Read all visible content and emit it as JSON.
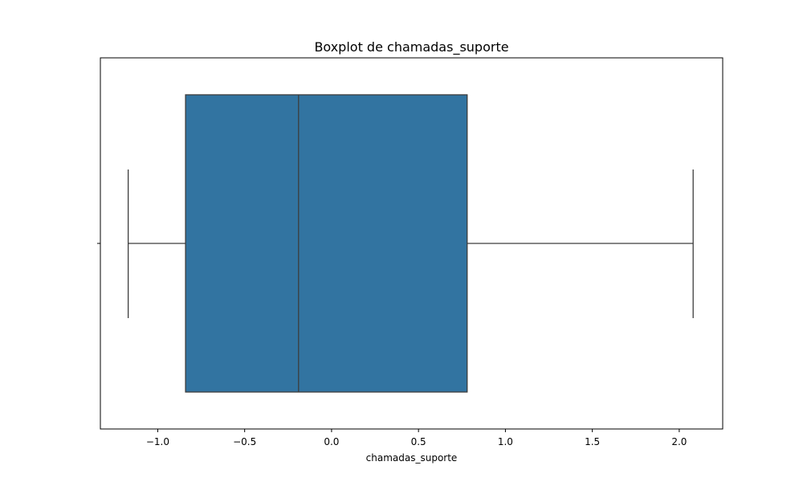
{
  "chart_data": {
    "type": "boxplot",
    "title": "Boxplot de chamadas_suporte",
    "xlabel": "chamadas_suporte",
    "ylabel": "",
    "orientation": "horizontal",
    "xlim": [
      -1.33,
      2.25
    ],
    "x_ticks": [
      -1.0,
      -0.5,
      0.0,
      0.5,
      1.0,
      1.5,
      2.0
    ],
    "x_tick_labels": [
      "−1.0",
      "−0.5",
      "0.0",
      "0.5",
      "1.0",
      "1.5",
      "2.0"
    ],
    "grid": false,
    "box": {
      "whisker_low": -1.17,
      "q1": -0.84,
      "median": -0.19,
      "q3": 0.78,
      "whisker_high": 2.08
    },
    "colors": {
      "box_fill": "#3274a1",
      "line": "#3d3d3d",
      "axes": "#000000"
    }
  }
}
